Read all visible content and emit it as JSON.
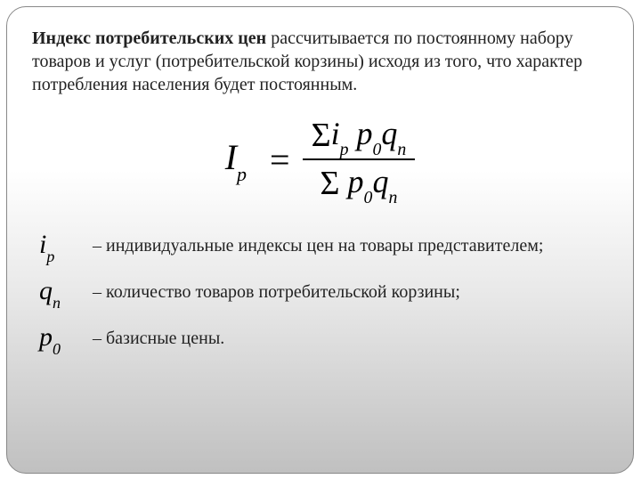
{
  "colors": {
    "text": "#222222",
    "formula": "#000000",
    "border": "#888888",
    "bg_top": "#ffffff",
    "bg_bottom": "#c0c0c0"
  },
  "typography": {
    "body_font": "Georgia, Times New Roman, serif",
    "body_size_pt": 15,
    "formula_font": "Times New Roman, serif",
    "formula_size_pt": 30,
    "symbol_size_pt": 23
  },
  "intro": {
    "bold": "Индекс потребительских цен",
    "rest": " рассчитывается по постоянному набору товаров и услуг (потребительской корзины) исходя из того, что характер потребления населения будет постоянным."
  },
  "formula": {
    "lhs_base": "I",
    "lhs_sub": "p",
    "equals": "=",
    "num_items": [
      "Σ",
      "i",
      "p",
      "p",
      "0",
      "q",
      "n"
    ],
    "den_items": [
      "Σ",
      "p",
      "0",
      "q",
      "n"
    ]
  },
  "definitions": [
    {
      "sym_base": "i",
      "sym_sub": "p",
      "text": "– индивидуальные индексы цен на товары представителем;"
    },
    {
      "sym_base": "q",
      "sym_sub": "n",
      "text": "– количество товаров потребительской корзины;"
    },
    {
      "sym_base": "p",
      "sym_sub": "0",
      "text": "– базисные цены."
    }
  ]
}
